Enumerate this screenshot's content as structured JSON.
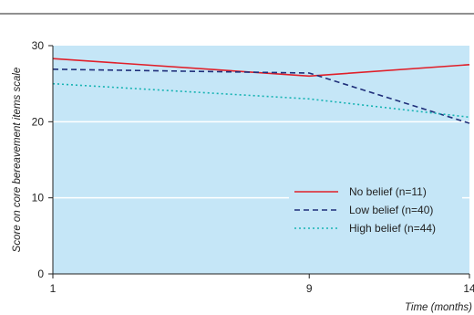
{
  "chart_data": {
    "type": "line",
    "x": [
      1,
      9,
      14
    ],
    "xlabel": "Time (months)",
    "ylabel": "Score on core bereavement items scale",
    "ylim": [
      0,
      30
    ],
    "xticks": [
      "1",
      "9",
      "14"
    ],
    "yticks": [
      "0",
      "10",
      "20",
      "30"
    ],
    "grid": "horizontal white lines",
    "legend_position": "bottom-right",
    "background_color": "#c5e6f7",
    "series": [
      {
        "name": "No belief (n=11)",
        "values": [
          28.3,
          26.0,
          27.5
        ],
        "color": "#e0202a",
        "style": "solid"
      },
      {
        "name": "Low belief (n=40)",
        "values": [
          26.9,
          26.4,
          19.8
        ],
        "color": "#1f2f7a",
        "style": "dashed"
      },
      {
        "name": "High belief (n=44)",
        "values": [
          25.0,
          23.0,
          20.6
        ],
        "color": "#17b3b3",
        "style": "dotted"
      }
    ]
  }
}
